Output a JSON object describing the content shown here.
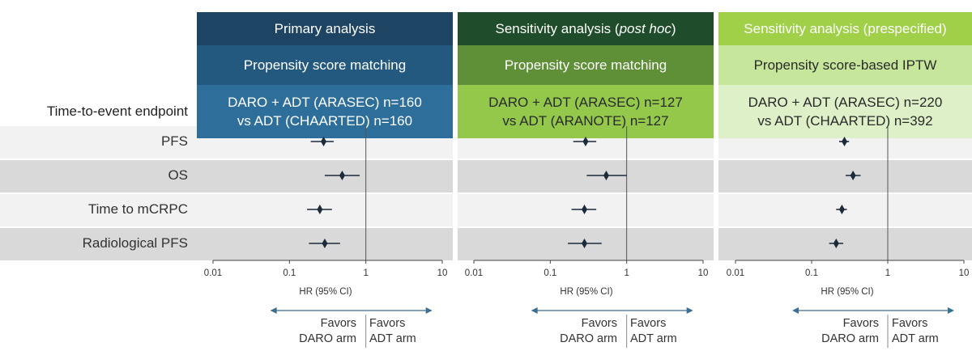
{
  "endpoint_header": "Time-to-event endpoint",
  "chart_data": {
    "type": "forest",
    "x_scale": "log",
    "xlim": [
      0.01,
      10
    ],
    "xticks": [
      "0.01",
      "0.1",
      "1",
      "10"
    ],
    "xlabel": "HR (95% CI)",
    "reference_line": 1,
    "endpoints": [
      "PFS",
      "OS",
      "Time to mCRPC",
      "Radiological PFS"
    ],
    "favors_left": "Favors\nDARO arm",
    "favors_right": "Favors\nADT arm",
    "panels": [
      {
        "title": "Primary analysis",
        "method": "Propensity score matching",
        "comparison_line1": "DARO + ADT (ARASEC) n=160",
        "comparison_line2": "vs ADT (CHAARTED) n=160",
        "colors": {
          "title_bg": "#1e4463",
          "method_bg": "#24597f",
          "comparison_bg": "#2e6e9b",
          "text": "#ffffff"
        },
        "estimates": [
          {
            "endpoint": "PFS",
            "hr": 0.28,
            "lower": 0.19,
            "upper": 0.38
          },
          {
            "endpoint": "OS",
            "hr": 0.49,
            "lower": 0.29,
            "upper": 0.83
          },
          {
            "endpoint": "Time to mCRPC",
            "hr": 0.25,
            "lower": 0.17,
            "upper": 0.36
          },
          {
            "endpoint": "Radiological PFS",
            "hr": 0.29,
            "lower": 0.18,
            "upper": 0.46
          }
        ]
      },
      {
        "title": "Sensitivity analysis (",
        "title_italic": "post hoc",
        "title_end": ")",
        "method": "Propensity score matching",
        "comparison_line1": "DARO + ADT (ARASEC) n=127",
        "comparison_line2": "vs ADT (ARANOTE) n=127",
        "colors": {
          "title_bg": "#1f4d2b",
          "method_bg": "#5f8f37",
          "comparison_bg": "#93c84b",
          "text_top": "#ffffff",
          "text_bottom": "#2a2a2a"
        },
        "estimates": [
          {
            "endpoint": "PFS",
            "hr": 0.29,
            "lower": 0.2,
            "upper": 0.4
          },
          {
            "endpoint": "OS",
            "hr": 0.54,
            "lower": 0.3,
            "upper": 1.0
          },
          {
            "endpoint": "Time to mCRPC",
            "hr": 0.28,
            "lower": 0.19,
            "upper": 0.4
          },
          {
            "endpoint": "Radiological PFS",
            "hr": 0.28,
            "lower": 0.17,
            "upper": 0.47
          }
        ]
      },
      {
        "title": "Sensitivity analysis (prespecified)",
        "method": "Propensity score-based IPTW",
        "comparison_line1": "DARO + ADT (ARASEC) n=220",
        "comparison_line2": "vs ADT (CHAARTED) n=392",
        "colors": {
          "title_bg": "#9fd047",
          "method_bg": "#c6e79b",
          "comparison_bg": "#def0c8",
          "text_top": "#ffffff",
          "text_bottom": "#2a2a2a"
        },
        "estimates": [
          {
            "endpoint": "PFS",
            "hr": 0.27,
            "lower": 0.23,
            "upper": 0.31
          },
          {
            "endpoint": "OS",
            "hr": 0.35,
            "lower": 0.28,
            "upper": 0.44
          },
          {
            "endpoint": "Time to mCRPC",
            "hr": 0.25,
            "lower": 0.21,
            "upper": 0.29
          },
          {
            "endpoint": "Radiological PFS",
            "hr": 0.21,
            "lower": 0.17,
            "upper": 0.26
          }
        ]
      }
    ]
  },
  "style": {
    "row_light": "#f2f2f2",
    "row_dark": "#d9d9d9",
    "marker": "#1c2b3a",
    "ref_line": "#555555",
    "arrow": "#3a6f8f"
  }
}
